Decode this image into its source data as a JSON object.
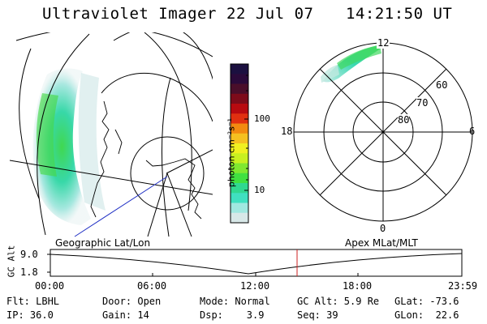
{
  "header": {
    "instrument": "Ultraviolet Imager",
    "date": "22 Jul 07",
    "time": "14:21:50 UT"
  },
  "geo_panel": {
    "label": "Geographic Lat/Lon"
  },
  "colorbar": {
    "unit_label": "photon cm⁻²s⁻¹",
    "ticks": [
      "100",
      "10"
    ],
    "colors": [
      "#1b1040",
      "#2a0a3a",
      "#4a0e2a",
      "#7d0b1a",
      "#b80a10",
      "#e03010",
      "#f28a10",
      "#f5c020",
      "#f0f020",
      "#c8f020",
      "#80e830",
      "#40e040",
      "#30d890",
      "#40e0c0",
      "#a0e8e0",
      "#d8e8e8"
    ]
  },
  "polar_panel": {
    "label": "Apex MLat/MLT",
    "mlt_labels": [
      "12",
      "18",
      "6",
      "0"
    ],
    "lat_labels": [
      "60",
      "70",
      "80"
    ]
  },
  "timeline": {
    "axis_label": "GC Alt",
    "y_ticks": [
      "9.0",
      "1.8"
    ],
    "x_ticks": [
      "00:00",
      "06:00",
      "12:00",
      "18:00",
      "23:59"
    ],
    "marker_time": "14:21:50",
    "marker_color": "#cc2222"
  },
  "status": {
    "filter": "Flt: LBHL",
    "ip": "IP: 36.0",
    "door": "Door: Open",
    "gain": "Gain: 14",
    "mode": "Mode: Normal",
    "dsp": "Dsp:    3.9",
    "gc_alt": "GC Alt: 5.9 Re",
    "seq": "Seq: 39",
    "glat": "GLat: -73.6",
    "glon": "GLon:  22.6"
  }
}
